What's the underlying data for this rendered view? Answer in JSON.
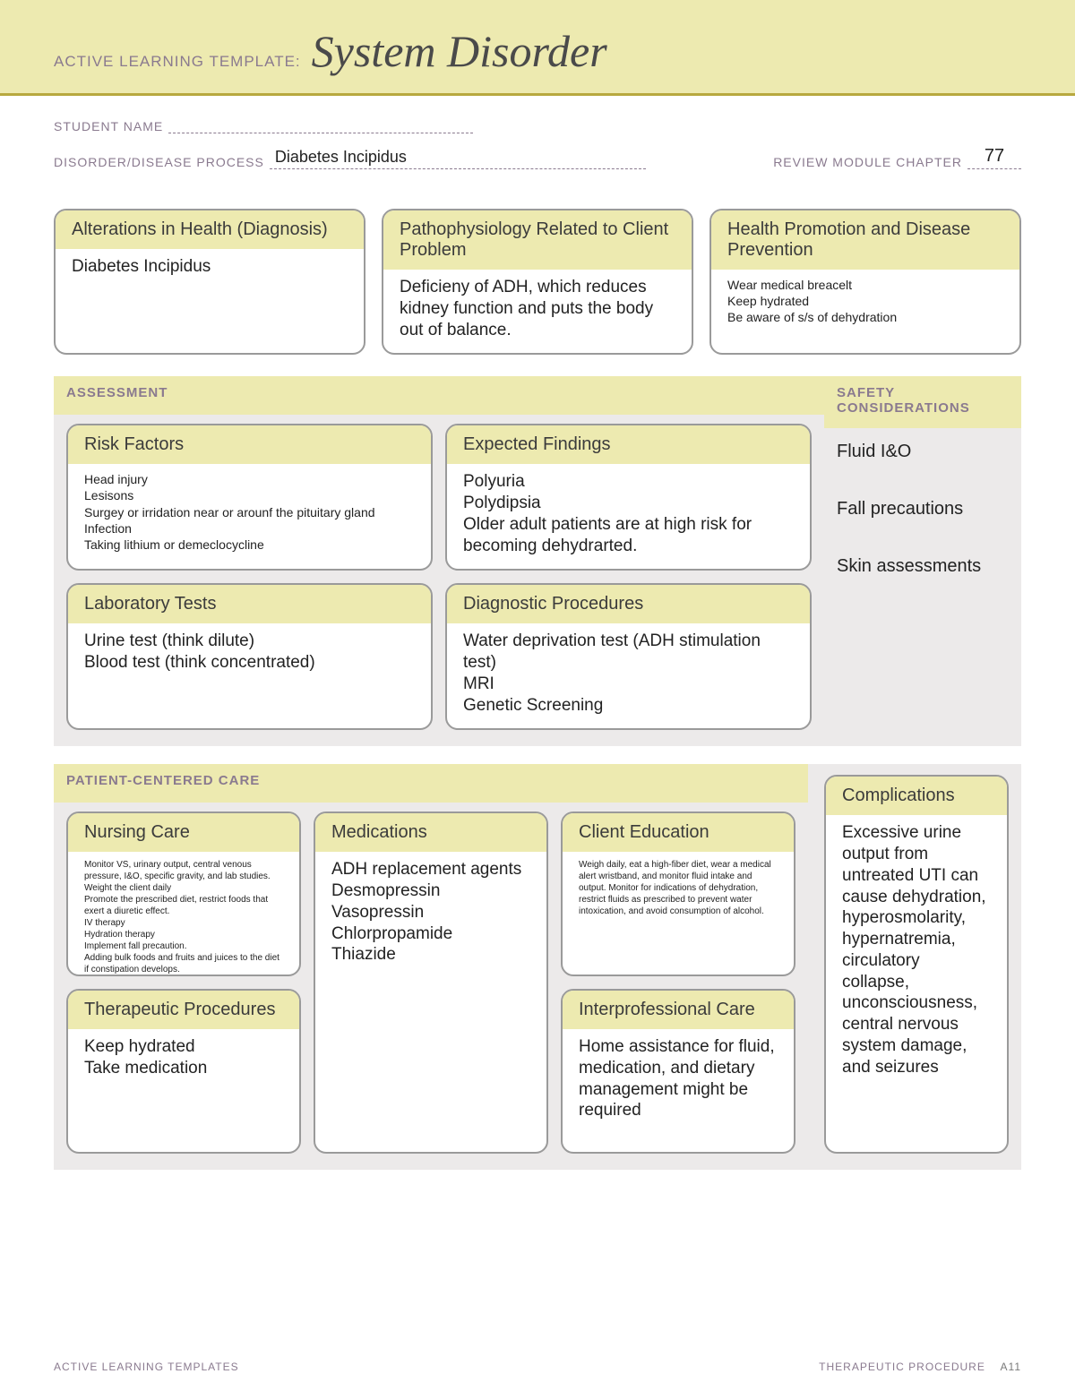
{
  "colors": {
    "banner_bg": "#edeab0",
    "banner_rule": "#b7a83f",
    "section_bg": "#eceaea",
    "card_border": "#9a9a9a",
    "label_color": "#8a7a8f",
    "text_color": "#222222",
    "page_bg": "#ffffff"
  },
  "banner": {
    "label": "ACTIVE LEARNING TEMPLATE:",
    "title": "System Disorder"
  },
  "meta": {
    "student_label": "STUDENT NAME",
    "student_value": "",
    "disorder_label": "DISORDER/DISEASE PROCESS",
    "disorder_value": "Diabetes Incipidus",
    "chapter_label": "REVIEW MODULE CHAPTER",
    "chapter_value": "77"
  },
  "top": {
    "alterations": {
      "title": "Alterations in Health (Diagnosis)",
      "body": "Diabetes Incipidus"
    },
    "patho": {
      "title": "Pathophysiology Related to Client Problem",
      "body": "Deficieny of ADH, which reduces kidney function and puts the body out of balance."
    },
    "promotion": {
      "title": "Health Promotion and Disease Prevention",
      "body": "Wear medical breacelt\nKeep hydrated\nBe aware of s/s of dehydration"
    }
  },
  "assessment": {
    "label": "ASSESSMENT",
    "risk": {
      "title": "Risk Factors",
      "body": "Head injury\nLesisons\nSurgey or irridation near or arounf the pituitary gland\nInfection\nTaking lithium or demeclocycline"
    },
    "findings": {
      "title": "Expected Findings",
      "body": "Polyuria\nPolydipsia\nOlder adult patients are at high risk for becoming dehydrarted."
    },
    "labs": {
      "title": "Laboratory Tests",
      "body": "Urine test (think dilute)\nBlood test (think concentrated)"
    },
    "diag": {
      "title": "Diagnostic Procedures",
      "body": "Water deprivation test (ADH stimulation test)\nMRI\nGenetic Screening"
    },
    "safety": {
      "label": "SAFETY CONSIDERATIONS",
      "body": "Fluid I&O\n\nFall precautions\n\nSkin assessments"
    }
  },
  "pcc": {
    "label": "PATIENT-CENTERED CARE",
    "nursing": {
      "title": "Nursing Care",
      "body": "Monitor VS, urinary output, central venous pressure, I&O, specific gravity, and lab studies.\nWeight the client daily\nPromote the prescribed diet, restrict foods that exert a diuretic effect.\nIV therapy\nHydration therapy\nImplement fall precaution.\nAdding bulk foods and fruits and juices to the diet if constipation develops.\nAssess skin turgor and mucous membrane.\nProvide skin and mouth care\nEncourage client to drink fluids in response to thirst and match the volume of urine output"
    },
    "meds": {
      "title": "Medications",
      "body": "ADH replacement agents\nDesmopressin\nVasopressin\nChlorpropamide\nThiazide"
    },
    "edu": {
      "title": "Client Education",
      "body": "Weigh daily, eat a high-fiber diet, wear a medical alert wristband, and monitor fluid intake and output. Monitor for indications of dehydration, restrict fluids as prescribed to prevent water intoxication, and avoid consumption of alcohol."
    },
    "ther": {
      "title": "Therapeutic Procedures",
      "body": "Keep hydrated\nTake medication"
    },
    "inter": {
      "title": "Interprofessional Care",
      "body": "Home assistance for fluid, medication, and dietary management might be required"
    },
    "comp": {
      "title": "Complications",
      "body": "Excessive urine output from untreated UTI can cause dehydration, hyperosmolarity, hypernatremia, circulatory collapse, unconsciousness, central nervous system damage, and seizures"
    }
  },
  "footer": {
    "left": "ACTIVE LEARNING TEMPLATES",
    "right_label": "THERAPEUTIC PROCEDURE",
    "right_page": "A11"
  }
}
